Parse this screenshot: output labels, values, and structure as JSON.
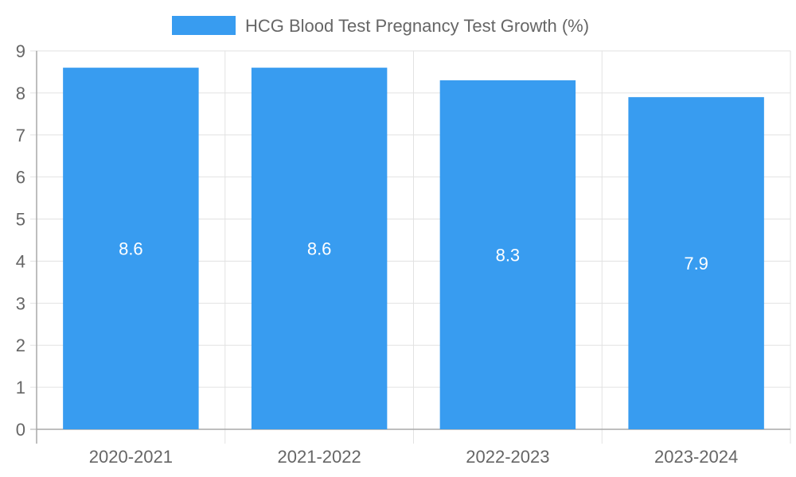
{
  "chart_data": {
    "type": "bar",
    "title": "",
    "xlabel": "",
    "ylabel": "",
    "categories": [
      "2020-2021",
      "2021-2022",
      "2022-2023",
      "2023-2024"
    ],
    "series": [
      {
        "name": "HCG Blood Test Pregnancy Test Growth (%)",
        "values": [
          8.6,
          8.6,
          8.3,
          7.9
        ],
        "labels": [
          "8.6",
          "8.6",
          "8.3",
          "7.9"
        ]
      }
    ],
    "ylim": [
      0,
      9
    ],
    "yticks": [
      "0",
      "1",
      "2",
      "3",
      "4",
      "5",
      "6",
      "7",
      "8",
      "9"
    ],
    "legend_position": "top-center",
    "grid": true,
    "colors": {
      "bar": "#389cf0",
      "grid": "#e2e2e2",
      "axis": "#a9a9a9",
      "tick_text": "#666666",
      "data_label": "#ffffff"
    }
  }
}
